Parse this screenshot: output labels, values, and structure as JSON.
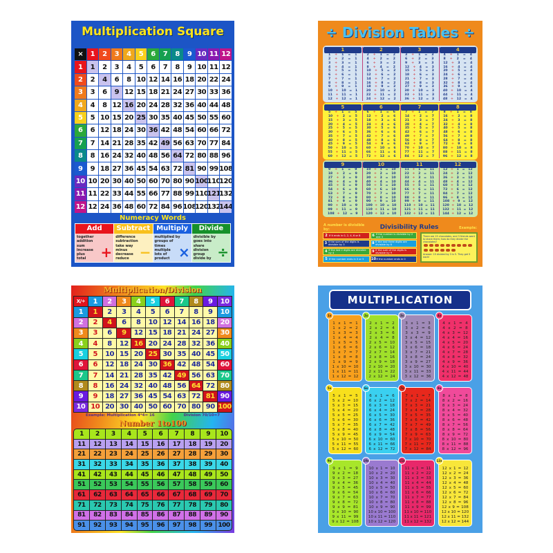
{
  "multiplication_square": {
    "title": "Multiplication Square",
    "corner": "×",
    "headers": [
      1,
      2,
      3,
      4,
      5,
      6,
      7,
      8,
      9,
      10,
      11,
      12
    ],
    "header_colors": [
      "#e8141c",
      "#f04a1c",
      "#f07a1c",
      "#f0a81c",
      "#f8d01c",
      "#2aa83a",
      "#16a050",
      "#0a8a8a",
      "#1a5ad0",
      "#6a2ac0",
      "#8a1ab0",
      "#c0148a"
    ],
    "rows": [
      [
        1,
        2,
        3,
        4,
        5,
        6,
        7,
        8,
        9,
        10,
        11,
        12
      ],
      [
        2,
        4,
        6,
        8,
        10,
        12,
        14,
        16,
        18,
        20,
        22,
        24
      ],
      [
        3,
        6,
        9,
        12,
        15,
        18,
        21,
        24,
        27,
        30,
        33,
        36
      ],
      [
        4,
        8,
        12,
        16,
        20,
        24,
        28,
        32,
        36,
        40,
        44,
        48
      ],
      [
        5,
        10,
        15,
        20,
        25,
        30,
        35,
        40,
        45,
        50,
        55,
        60
      ],
      [
        6,
        12,
        18,
        24,
        30,
        36,
        42,
        48,
        54,
        60,
        66,
        72
      ],
      [
        7,
        14,
        21,
        28,
        35,
        42,
        49,
        56,
        63,
        70,
        77,
        84
      ],
      [
        8,
        16,
        24,
        32,
        40,
        48,
        56,
        64,
        72,
        80,
        88,
        96
      ],
      [
        9,
        18,
        27,
        36,
        45,
        54,
        63,
        72,
        81,
        90,
        99,
        108
      ],
      [
        10,
        20,
        30,
        40,
        50,
        60,
        70,
        80,
        90,
        100,
        110,
        120
      ],
      [
        11,
        22,
        33,
        44,
        55,
        66,
        77,
        88,
        99,
        110,
        121,
        132
      ],
      [
        12,
        24,
        36,
        48,
        60,
        72,
        84,
        96,
        108,
        120,
        132,
        144
      ]
    ],
    "section_title": "Numeracy Words",
    "words": [
      {
        "label": "Add",
        "color": "#e8141c",
        "bg": "#f8c8c8",
        "symbol": "+",
        "items": [
          "together",
          "addition",
          "sum",
          "increase",
          "plus",
          "total"
        ]
      },
      {
        "label": "Subtract",
        "color": "#f8c01c",
        "bg": "#fdf0c0",
        "symbol": "−",
        "items": [
          "difference",
          "subtraction",
          "take way",
          "minus",
          "decrease",
          "reduce"
        ]
      },
      {
        "label": "Multiply",
        "color": "#1a60e0",
        "bg": "#c8dcf8",
        "symbol": "×",
        "items": [
          "multiplied by",
          "groups of",
          "times",
          "multiple",
          "lots of",
          "product"
        ]
      },
      {
        "label": "Divide",
        "color": "#16902a",
        "bg": "#c8ecc8",
        "symbol": "÷",
        "items": [
          "divisible by",
          "goes into",
          "share",
          "division",
          "group",
          "divide by"
        ]
      }
    ]
  },
  "division_tables": {
    "title": "÷ Division Tables ÷",
    "operator": "÷",
    "equals": "=",
    "band_colors": [
      "#d6e4f2",
      "#fff23a",
      "#c8e8b0"
    ],
    "tables": [
      1,
      2,
      3,
      4,
      5,
      6,
      7,
      8,
      9,
      10,
      11,
      12
    ],
    "rows_note_multipliers": [
      1,
      2,
      3,
      4,
      5,
      6,
      7,
      8,
      9,
      10,
      11,
      12
    ],
    "rules_title": "Divisibility Rules",
    "rules_lead": "A number is divisible by:",
    "example_label": "Example:",
    "rules": [
      {
        "n": "2",
        "text": "If it ends in 0, 2, 4, 6 or 8",
        "color": "#d0201c"
      },
      {
        "n": "6",
        "text": "If the number is divisible by 2 and 3",
        "color": "#3aa83a"
      },
      {
        "n": "3",
        "text": "If the sum of the digits is divisible by 3",
        "color": "#1e3a8a"
      },
      {
        "n": "8",
        "text": "If the last three digits are divisible by 8",
        "color": "#1aa0e0"
      },
      {
        "n": "4",
        "text": "If the last 2 digits are divisible by 4",
        "color": "#3aa83a"
      },
      {
        "n": "9",
        "text": "If the sum of the digits is divisible by 9",
        "color": "#d0201c"
      },
      {
        "n": "5",
        "text": "If the number ends in 0 or 5",
        "color": "#1aa0e0"
      },
      {
        "n": "10",
        "text": "If the number ends in 0",
        "color": "#1e3a8a"
      }
    ],
    "example_text": "There are 15 chocolates, and 3 friends want to share them; how do they divide the chocolates?",
    "example_answer": "Answer: 15 divided by 3 is 5. They get 5 each!"
  },
  "multiplication_division": {
    "title": "Multiplication/Division",
    "corner": "X/÷",
    "headers": [
      1,
      2,
      3,
      4,
      5,
      6,
      7,
      8,
      9,
      10
    ],
    "header_colors": [
      "#1a9ae0",
      "#d070e0",
      "#f08a1c",
      "#8ad01c",
      "#1ad0e0",
      "#e0143a",
      "#1ac88a",
      "#b08a1c",
      "#6a1ae0",
      "#7a2ae0"
    ],
    "rows": [
      [
        1,
        2,
        3,
        4,
        5,
        6,
        7,
        8,
        9,
        10
      ],
      [
        2,
        4,
        6,
        8,
        10,
        12,
        14,
        16,
        18,
        20
      ],
      [
        3,
        6,
        9,
        12,
        15,
        18,
        21,
        24,
        27,
        30
      ],
      [
        4,
        8,
        12,
        16,
        20,
        24,
        28,
        32,
        36,
        40
      ],
      [
        5,
        10,
        15,
        20,
        25,
        30,
        35,
        40,
        45,
        50
      ],
      [
        6,
        12,
        18,
        24,
        30,
        36,
        42,
        48,
        54,
        60
      ],
      [
        7,
        14,
        21,
        28,
        35,
        42,
        49,
        56,
        63,
        70
      ],
      [
        8,
        16,
        24,
        32,
        40,
        48,
        56,
        64,
        72,
        80
      ],
      [
        9,
        18,
        27,
        36,
        45,
        54,
        63,
        72,
        81,
        90
      ],
      [
        10,
        20,
        30,
        40,
        50,
        60,
        70,
        80,
        90,
        100
      ]
    ],
    "example_mult": "Example: Multiplication 4*4= 16",
    "example_div": "Division 70/10=7",
    "number_title": "Number 1to100",
    "number_rows": [
      [
        1,
        2,
        3,
        4,
        5,
        6,
        7,
        8,
        9,
        10
      ],
      [
        11,
        12,
        13,
        14,
        15,
        16,
        17,
        18,
        19,
        20
      ],
      [
        21,
        22,
        23,
        24,
        25,
        26,
        27,
        28,
        29,
        30
      ],
      [
        31,
        32,
        33,
        34,
        35,
        36,
        37,
        38,
        39,
        40
      ],
      [
        41,
        42,
        43,
        44,
        45,
        46,
        47,
        48,
        49,
        50
      ],
      [
        51,
        52,
        53,
        54,
        55,
        56,
        57,
        58,
        59,
        60
      ],
      [
        61,
        62,
        63,
        64,
        65,
        66,
        67,
        68,
        69,
        70
      ],
      [
        71,
        72,
        73,
        74,
        75,
        76,
        77,
        78,
        79,
        80
      ],
      [
        81,
        82,
        83,
        84,
        85,
        86,
        87,
        88,
        89,
        90
      ],
      [
        91,
        92,
        93,
        94,
        95,
        96,
        97,
        98,
        99,
        100
      ]
    ],
    "number_row_colors": [
      "#a8e61c",
      "#b8a0f0",
      "#f4a03a",
      "#3ad8e8",
      "#a8e61c",
      "#3ac85a",
      "#e8283a",
      "#2ac8b0",
      "#d070e8",
      "#4a90e8"
    ]
  },
  "multiplication_poster": {
    "title": "MULTIPLICATION",
    "operator": "x",
    "equals": "=",
    "tables": [
      1,
      2,
      3,
      4,
      5,
      6,
      7,
      8,
      9,
      10,
      11,
      12
    ],
    "badges": [
      "1x",
      "2x",
      "3x",
      "4x",
      "5x",
      "6x",
      "7x",
      "8x",
      "9x",
      "10x",
      "11x",
      "12x"
    ],
    "card_colors": [
      "#f8a01c",
      "#a0e02a",
      "#a08ab8",
      "#f0306a",
      "#f8e01c",
      "#3ad0f0",
      "#e8281c",
      "#f04a9a",
      "#a8e62a",
      "#9a7ad0",
      "#e8286a",
      "#f8e63a"
    ]
  }
}
